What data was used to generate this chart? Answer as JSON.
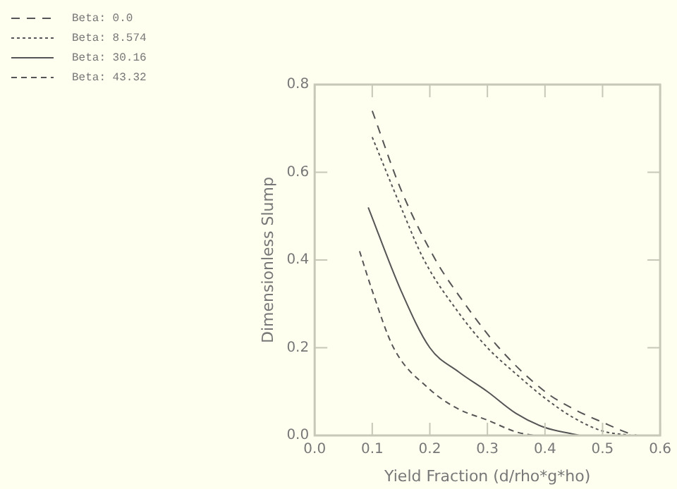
{
  "chart_data": {
    "type": "line",
    "xlabel": "Yield Fraction (d/rho*g*ho)",
    "ylabel": "Dimensionless Slump",
    "xlim": [
      0,
      0.6
    ],
    "ylim": [
      0,
      0.8
    ],
    "xticks": [
      {
        "value": 0,
        "label": "0.0"
      },
      0.1,
      0.2,
      0.3,
      0.4,
      0.5,
      0.6
    ],
    "yticks": [
      {
        "value": 0,
        "label": "0.0"
      },
      0.2,
      0.4,
      0.6,
      0.8
    ],
    "legend": "top left",
    "marker": "none",
    "grid": false,
    "series": [
      {
        "name": "Beta: 0.0",
        "color": "#555555",
        "line_style": "dashed",
        "x": [
          0.1,
          0.15,
          0.21,
          0.25,
          0.32,
          0.4,
          0.45,
          0.5,
          0.55,
          0.56
        ],
        "values": [
          0.74,
          0.56,
          0.4,
          0.32,
          0.2,
          0.1,
          0.06,
          0.03,
          0.003,
          0
        ]
      },
      {
        "name": "Beta: 8.574",
        "color": "#555555",
        "line_style": "dotted",
        "x": [
          0.1,
          0.15,
          0.19,
          0.25,
          0.3,
          0.35,
          0.4,
          0.45,
          0.5,
          0.55
        ],
        "values": [
          0.68,
          0.52,
          0.4,
          0.28,
          0.2,
          0.14,
          0.085,
          0.04,
          0.01,
          0
        ]
      },
      {
        "name": "Beta: 30.16",
        "color": "#555555",
        "line_style": "solid",
        "x": [
          0.093,
          0.15,
          0.2,
          0.25,
          0.3,
          0.35,
          0.4,
          0.45,
          0.46
        ],
        "values": [
          0.52,
          0.33,
          0.2,
          0.145,
          0.1,
          0.05,
          0.018,
          0.003,
          0
        ]
      },
      {
        "name": "Beta: 43.32",
        "color": "#555555",
        "line_style": "dashed",
        "x": [
          0.078,
          0.1,
          0.137,
          0.2,
          0.25,
          0.3,
          0.35,
          0.38
        ],
        "values": [
          0.42,
          0.33,
          0.2,
          0.105,
          0.06,
          0.035,
          0.008,
          0
        ]
      }
    ]
  }
}
